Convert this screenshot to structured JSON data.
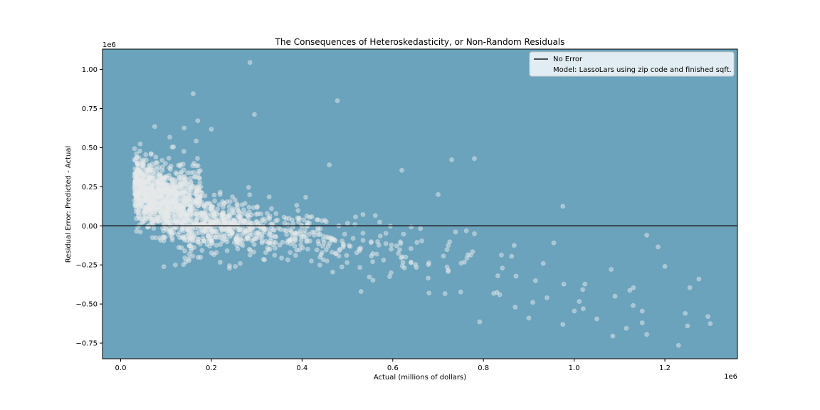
{
  "chart_data": {
    "type": "scatter",
    "title": "The Consequences of Heteroskedasticity, or Non-Random Residuals",
    "xlabel": "Actual (millions of dollars)",
    "ylabel": "Residual Error: Predicted - Actual",
    "x_offset_label": "1e6",
    "y_offset_label": "1e6",
    "xlim": [
      -40000,
      1360000
    ],
    "ylim": [
      -850000,
      1130000
    ],
    "x_ticks": [
      0,
      200000,
      400000,
      600000,
      800000,
      1000000,
      1200000
    ],
    "x_tick_labels": [
      "0.0",
      "0.2",
      "0.4",
      "0.6",
      "0.8",
      "1.0",
      "1.2"
    ],
    "y_ticks": [
      -750000,
      -500000,
      -250000,
      0,
      250000,
      500000,
      750000,
      1000000
    ],
    "y_tick_labels": [
      "−0.75",
      "−0.50",
      "−0.25",
      "0.00",
      "0.25",
      "0.50",
      "0.75",
      "1.00"
    ],
    "grid": false,
    "legend_position": "top-right",
    "background_color": "#6BA3BC",
    "point_color": "#E6E9EA",
    "line_color": "#1a1a1a",
    "series": [
      {
        "name": "No Error",
        "kind": "line",
        "y": 0
      },
      {
        "name": "Model: LassoLars using zip code and finished sqft.",
        "kind": "points",
        "points": [
          [
            285000,
            1045000
          ],
          [
            160000,
            845000
          ],
          [
            478000,
            800000
          ],
          [
            295000,
            712000
          ],
          [
            170000,
            672000
          ],
          [
            75000,
            635000
          ],
          [
            140000,
            625000
          ],
          [
            200000,
            618000
          ],
          [
            460000,
            390000
          ],
          [
            620000,
            355000
          ],
          [
            730000,
            422000
          ],
          [
            780000,
            430000
          ],
          [
            700000,
            200000
          ],
          [
            975000,
            125000
          ],
          [
            1160000,
            -60000
          ],
          [
            1185000,
            -135000
          ],
          [
            1230000,
            -765000
          ],
          [
            1085000,
            -705000
          ],
          [
            1160000,
            -695000
          ],
          [
            1250000,
            -640000
          ],
          [
            1300000,
            -625000
          ],
          [
            1295000,
            -580000
          ],
          [
            1245000,
            -560000
          ],
          [
            1275000,
            -340000
          ],
          [
            1255000,
            -395000
          ],
          [
            1150000,
            -545000
          ],
          [
            1115000,
            -655000
          ],
          [
            1130000,
            -510000
          ],
          [
            1200000,
            -260000
          ],
          [
            1150000,
            -620000
          ],
          [
            240000,
            -255000
          ],
          [
            240000,
            -270000
          ],
          [
            70000,
            -75000
          ],
          [
            35000,
            -35000
          ],
          [
            40000,
            405000
          ],
          [
            530000,
            -420000
          ],
          [
            680000,
            -430000
          ],
          [
            830000,
            -425000
          ],
          [
            900000,
            -590000
          ],
          [
            975000,
            -630000
          ],
          [
            1050000,
            -595000
          ],
          [
            870000,
            -520000
          ],
          [
            940000,
            -460000
          ],
          [
            1020000,
            -530000
          ],
          [
            1090000,
            -450000
          ]
        ]
      }
    ]
  }
}
